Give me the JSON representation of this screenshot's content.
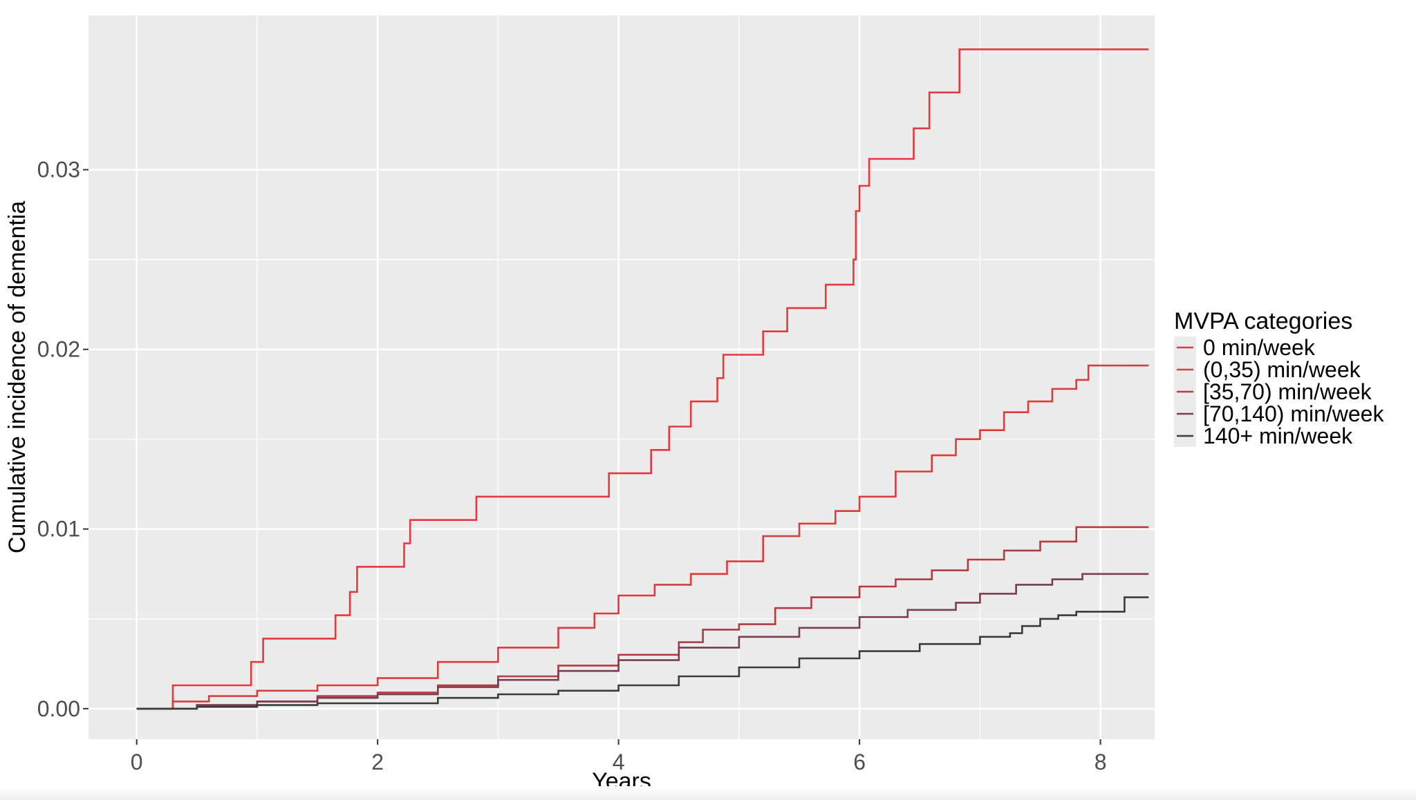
{
  "chart_data": {
    "type": "line",
    "step": true,
    "xlabel": "Years",
    "ylabel": "Cumulative incidence of dementia",
    "xlim": [
      -0.4,
      8.45
    ],
    "ylim": [
      -0.0017,
      0.0386
    ],
    "x_ticks": [
      0,
      2,
      4,
      6,
      8
    ],
    "x_tick_labels": [
      "0",
      "2",
      "4",
      "6",
      "8"
    ],
    "y_ticks": [
      0.0,
      0.01,
      0.02,
      0.03
    ],
    "y_tick_labels": [
      "0.00",
      "0.01",
      "0.02",
      "0.03"
    ],
    "grid": true,
    "legend": {
      "title": "MVPA categories",
      "position": "right"
    },
    "colors": {
      "panel": "#ebebeb",
      "grid": "#ffffff"
    },
    "series": [
      {
        "name": "0 min/week",
        "color": "#e8373c",
        "x": [
          0,
          0.3,
          0.95,
          1.05,
          1.65,
          1.77,
          1.83,
          2.22,
          2.27,
          2.82,
          3.92,
          4.27,
          4.42,
          4.6,
          4.82,
          4.87,
          5.2,
          5.4,
          5.72,
          5.95,
          5.97,
          6.0,
          6.08,
          6.45,
          6.58,
          6.83,
          8.4
        ],
        "y": [
          0,
          0.0013,
          0.0026,
          0.0039,
          0.0052,
          0.0065,
          0.0079,
          0.0092,
          0.0105,
          0.0118,
          0.0131,
          0.0144,
          0.0157,
          0.0171,
          0.0184,
          0.0197,
          0.021,
          0.0223,
          0.0236,
          0.025,
          0.0277,
          0.0291,
          0.0306,
          0.0323,
          0.0343,
          0.0367,
          0.0367
        ]
      },
      {
        "name": "(0,35) min/week",
        "color": "#d93c3c",
        "x": [
          0,
          0.3,
          0.6,
          1.0,
          1.5,
          2.0,
          2.5,
          3.0,
          3.5,
          3.8,
          4.0,
          4.3,
          4.6,
          4.9,
          5.2,
          5.5,
          5.8,
          6.0,
          6.3,
          6.6,
          6.8,
          7.0,
          7.2,
          7.4,
          7.6,
          7.8,
          7.9,
          8.4
        ],
        "y": [
          0,
          0.0004,
          0.0007,
          0.001,
          0.0013,
          0.0017,
          0.0026,
          0.0034,
          0.0045,
          0.0053,
          0.0063,
          0.0069,
          0.0075,
          0.0082,
          0.0096,
          0.0103,
          0.011,
          0.0118,
          0.0132,
          0.0141,
          0.015,
          0.0155,
          0.0165,
          0.0171,
          0.0178,
          0.0183,
          0.0191,
          0.0191
        ]
      },
      {
        "name": "[35,70) min/week",
        "color": "#b23b3f",
        "x": [
          0,
          0.5,
          1.0,
          1.5,
          2.0,
          2.5,
          3.0,
          3.5,
          4.0,
          4.5,
          4.7,
          5.0,
          5.3,
          5.6,
          6.0,
          6.3,
          6.6,
          6.9,
          7.2,
          7.5,
          7.8,
          8.4
        ],
        "y": [
          0,
          0.0002,
          0.0004,
          0.0007,
          0.0009,
          0.0013,
          0.0018,
          0.0024,
          0.003,
          0.0037,
          0.0044,
          0.0047,
          0.0056,
          0.0062,
          0.0068,
          0.0072,
          0.0077,
          0.0083,
          0.0088,
          0.0093,
          0.0101,
          0.0101
        ]
      },
      {
        "name": "[70,140) min/week",
        "color": "#7a3d4e",
        "x": [
          0,
          0.5,
          1.0,
          1.5,
          2.0,
          2.5,
          3.0,
          3.5,
          4.0,
          4.5,
          5.0,
          5.5,
          6.0,
          6.4,
          6.8,
          7.0,
          7.3,
          7.6,
          7.85,
          8.4
        ],
        "y": [
          0,
          0.0002,
          0.0004,
          0.0006,
          0.0008,
          0.0012,
          0.0016,
          0.0021,
          0.0027,
          0.0034,
          0.004,
          0.0045,
          0.0051,
          0.0055,
          0.0059,
          0.0064,
          0.0069,
          0.0072,
          0.0075,
          0.0075
        ]
      },
      {
        "name": "140+ min/week",
        "color": "#3a3a3a",
        "x": [
          0,
          0.5,
          1.0,
          1.5,
          2.0,
          2.5,
          3.0,
          3.5,
          4.0,
          4.5,
          5.0,
          5.5,
          6.0,
          6.5,
          7.0,
          7.25,
          7.35,
          7.5,
          7.65,
          7.8,
          8.2,
          8.4
        ],
        "y": [
          0,
          0.0001,
          0.0002,
          0.0003,
          0.0003,
          0.0006,
          0.0008,
          0.001,
          0.0013,
          0.0018,
          0.0023,
          0.0028,
          0.0032,
          0.0036,
          0.004,
          0.0042,
          0.0046,
          0.005,
          0.0052,
          0.0054,
          0.0062,
          0.0062
        ]
      }
    ]
  }
}
